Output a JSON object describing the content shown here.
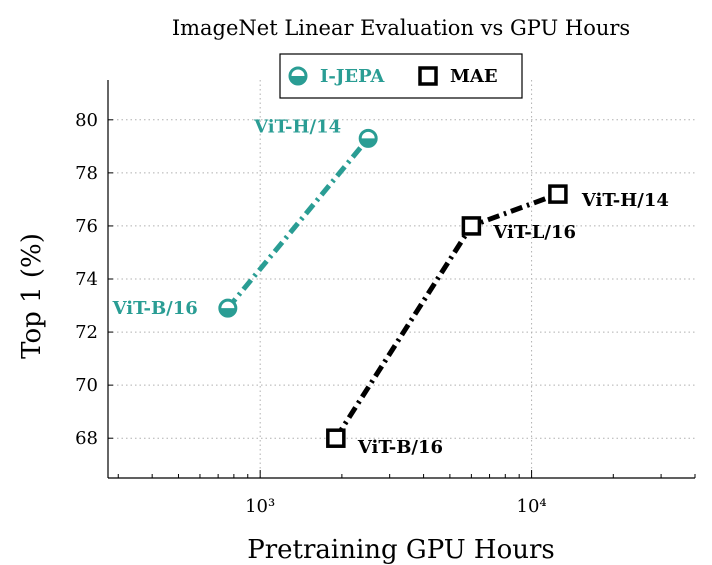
{
  "chart_data": {
    "type": "line",
    "title": "ImageNet Linear Evaluation vs GPU Hours",
    "xlabel": "Pretraining GPU Hours",
    "ylabel": "Top 1 (%)",
    "xscale": "log",
    "xlim": [
      275,
      40000
    ],
    "ylim": [
      66.5,
      81.5
    ],
    "x_ticks": [
      1000,
      10000
    ],
    "x_tick_labels": [
      "10³",
      "10⁴"
    ],
    "y_ticks": [
      68,
      70,
      72,
      74,
      76,
      78,
      80
    ],
    "grid": true,
    "legend_position": "top-center",
    "series": [
      {
        "name": "I-JEPA",
        "color": "#2a9d94",
        "marker": "half-filled-circle",
        "points": [
          {
            "x": 760,
            "y": 72.9,
            "label": "ViT-B/16"
          },
          {
            "x": 2500,
            "y": 79.3,
            "label": "ViT-H/14"
          }
        ]
      },
      {
        "name": "MAE",
        "color": "#000000",
        "marker": "open-square",
        "points": [
          {
            "x": 1900,
            "y": 68.0,
            "label": "ViT-B/16"
          },
          {
            "x": 6000,
            "y": 76.0,
            "label": "ViT-L/16"
          },
          {
            "x": 12500,
            "y": 77.2,
            "label": "ViT-H/14"
          }
        ]
      }
    ]
  }
}
